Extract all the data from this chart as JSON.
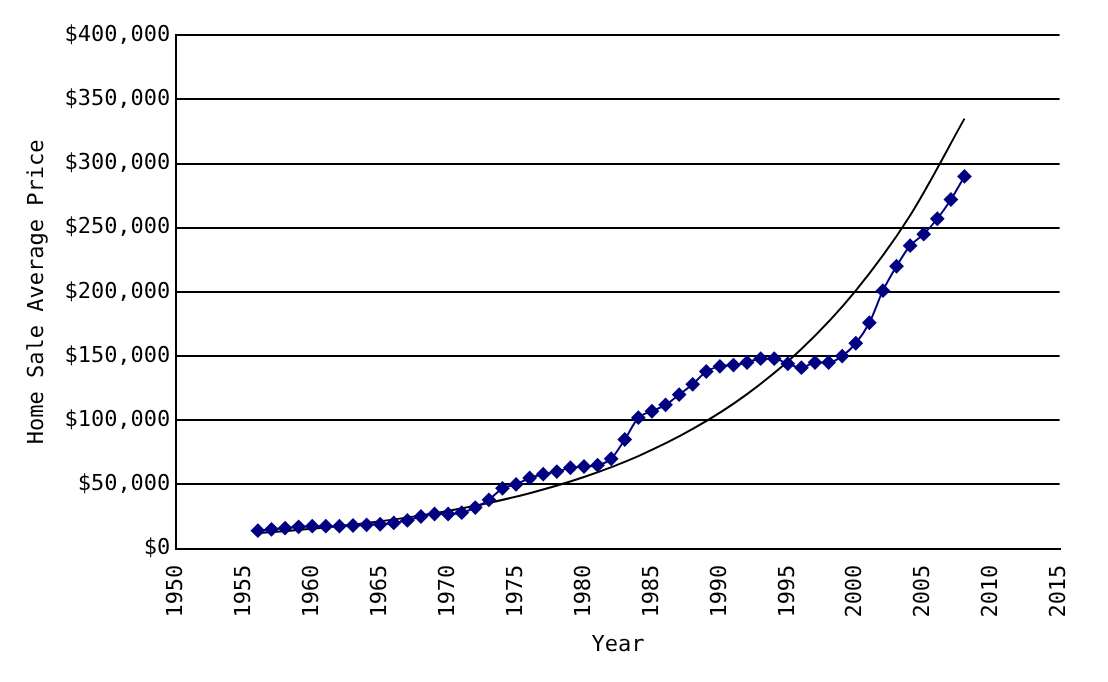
{
  "chart_data": {
    "type": "line",
    "xlabel": "Year",
    "ylabel": "Home Sale Average Price",
    "xlim": [
      1950,
      2015
    ],
    "xticks": [
      1950,
      1955,
      1960,
      1965,
      1970,
      1975,
      1980,
      1985,
      1990,
      1995,
      2000,
      2005,
      2010,
      2015
    ],
    "ylim": [
      0,
      400000
    ],
    "yticks": [
      {
        "value": 0,
        "label": "$0"
      },
      {
        "value": 50000,
        "label": "$50,000"
      },
      {
        "value": 100000,
        "label": "$100,000"
      },
      {
        "value": 150000,
        "label": "$150,000"
      },
      {
        "value": 200000,
        "label": "$200,000"
      },
      {
        "value": 250000,
        "label": "$250,000"
      },
      {
        "value": 300000,
        "label": "$300,000"
      },
      {
        "value": 350000,
        "label": "$350,000"
      },
      {
        "value": 400000,
        "label": "$400,000"
      }
    ],
    "grid": "y",
    "legend": false,
    "series": [
      {
        "color": "#000080",
        "marker": "diamond",
        "x": [
          1956,
          1957,
          1958,
          1959,
          1960,
          1961,
          1962,
          1963,
          1964,
          1965,
          1966,
          1967,
          1968,
          1969,
          1970,
          1971,
          1972,
          1973,
          1974,
          1975,
          1976,
          1977,
          1978,
          1979,
          1980,
          1981,
          1982,
          1983,
          1984,
          1985,
          1986,
          1987,
          1988,
          1989,
          1990,
          1991,
          1992,
          1993,
          1994,
          1995,
          1996,
          1997,
          1998,
          1999,
          2000,
          2001,
          2002,
          2003,
          2004,
          2005,
          2006,
          2007,
          2008
        ],
        "values": [
          14000,
          15000,
          16000,
          17000,
          17500,
          17500,
          17500,
          18000,
          18500,
          19000,
          20000,
          22000,
          25000,
          27000,
          27000,
          28000,
          32000,
          38000,
          47000,
          50000,
          55000,
          58000,
          60000,
          63000,
          64000,
          65000,
          70000,
          85000,
          102000,
          107000,
          112000,
          120000,
          128000,
          138000,
          142000,
          143000,
          145000,
          148000,
          148000,
          144000,
          141000,
          145000,
          145000,
          150000,
          160000,
          176000,
          201000,
          220000,
          236000,
          245000,
          257000,
          272000,
          290000
        ]
      },
      {
        "color": "#000000",
        "marker": "none",
        "x": [
          1956,
          1960,
          1964,
          1968,
          1972,
          1976,
          1980,
          1984,
          1988,
          1992,
          1996,
          2000,
          2004,
          2008
        ],
        "values": [
          12000,
          15500,
          20000,
          25900,
          33400,
          43200,
          55800,
          72100,
          93200,
          120400,
          155500,
          201000,
          259600,
          335000
        ]
      }
    ]
  }
}
